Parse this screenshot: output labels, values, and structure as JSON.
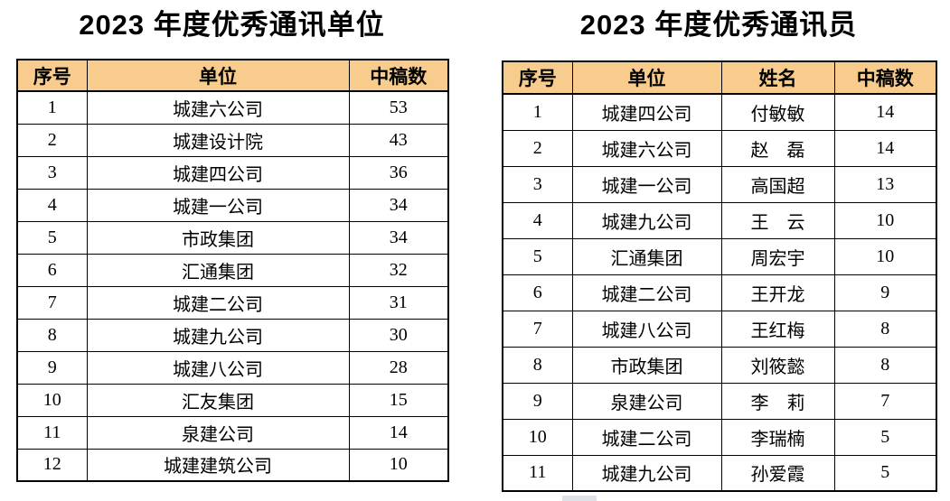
{
  "colors": {
    "header_bg": "#f8cc8c",
    "border": "#000000"
  },
  "units_table": {
    "title": "2023 年度优秀通讯单位",
    "headers": [
      "序号",
      "单位",
      "中稿数"
    ],
    "rows": [
      [
        "1",
        "城建六公司",
        "53"
      ],
      [
        "2",
        "城建设计院",
        "43"
      ],
      [
        "3",
        "城建四公司",
        "36"
      ],
      [
        "4",
        "城建一公司",
        "34"
      ],
      [
        "5",
        "市政集团",
        "34"
      ],
      [
        "6",
        "汇通集团",
        "32"
      ],
      [
        "7",
        "城建二公司",
        "31"
      ],
      [
        "8",
        "城建九公司",
        "30"
      ],
      [
        "9",
        "城建八公司",
        "28"
      ],
      [
        "10",
        "汇友集团",
        "15"
      ],
      [
        "11",
        "泉建公司",
        "14"
      ],
      [
        "12",
        "城建建筑公司",
        "10"
      ]
    ]
  },
  "correspondents_table": {
    "title": "2023 年度优秀通讯员",
    "headers": [
      "序号",
      "单位",
      "姓名",
      "中稿数"
    ],
    "rows": [
      [
        "1",
        "城建四公司",
        "付敏敏",
        "14"
      ],
      [
        "2",
        "城建六公司",
        "赵　磊",
        "14"
      ],
      [
        "3",
        "城建一公司",
        "高国超",
        "13"
      ],
      [
        "4",
        "城建九公司",
        "王　云",
        "10"
      ],
      [
        "5",
        "汇通集团",
        "周宏宇",
        "10"
      ],
      [
        "6",
        "城建二公司",
        "王开龙",
        "9"
      ],
      [
        "7",
        "城建八公司",
        "王红梅",
        "8"
      ],
      [
        "8",
        "市政集团",
        "刘筱懿",
        "8"
      ],
      [
        "9",
        "泉建公司",
        "李　莉",
        "7"
      ],
      [
        "10",
        "城建二公司",
        "李瑞楠",
        "5"
      ],
      [
        "11",
        "城建九公司",
        "孙爱霞",
        "5"
      ]
    ]
  }
}
